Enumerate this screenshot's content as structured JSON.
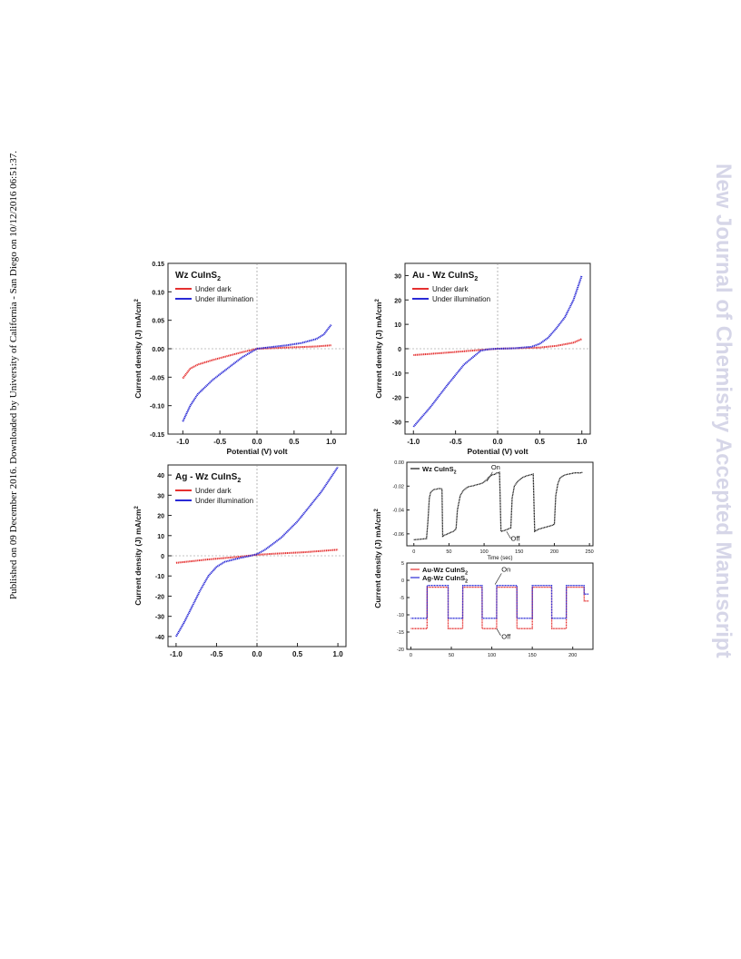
{
  "margin_left": "Published on 09 December 2016. Downloaded by University of California - San Diego on 10/12/2016 06:51:37.",
  "margin_right": "New Journal of Chemistry Accepted Manuscript",
  "colors": {
    "dark": "#e53030",
    "illumination": "#2a2ad6",
    "black": "#111111",
    "au": "#e53030",
    "ag": "#2a2ad6"
  },
  "chart_data": [
    {
      "type": "line",
      "title": "Wz CuInS2",
      "xlabel": "Potential (V) volt",
      "ylabel": "Current density (J) mA/cm2",
      "xlim": [
        -1.2,
        1.2
      ],
      "ylim": [
        -0.15,
        0.15
      ],
      "xticks": [
        "-1.0",
        "-0.5",
        "0.0",
        "0.5",
        "1.0"
      ],
      "yticks": [
        "-0.15",
        "-0.10",
        "-0.05",
        "0.00",
        "0.05",
        "0.10",
        "0.15"
      ],
      "series": [
        {
          "name": "Under dark",
          "x": [
            -1.0,
            -0.9,
            -0.8,
            -0.6,
            -0.4,
            -0.2,
            0.0,
            0.2,
            0.4,
            0.6,
            0.8,
            1.0
          ],
          "y": [
            -0.052,
            -0.035,
            -0.028,
            -0.02,
            -0.013,
            -0.006,
            0.0,
            0.001,
            0.002,
            0.003,
            0.004,
            0.006
          ]
        },
        {
          "name": "Under illumination",
          "x": [
            -1.0,
            -0.9,
            -0.8,
            -0.6,
            -0.4,
            -0.2,
            0.0,
            0.2,
            0.4,
            0.6,
            0.8,
            0.9,
            1.0
          ],
          "y": [
            -0.128,
            -0.1,
            -0.08,
            -0.055,
            -0.035,
            -0.015,
            0.0,
            0.003,
            0.006,
            0.01,
            0.017,
            0.025,
            0.042
          ]
        }
      ]
    },
    {
      "type": "line",
      "title": "Au - Wz CuInS2",
      "xlabel": "Potential (V) volt",
      "ylabel": "Current density (J) mA/cm2",
      "xlim": [
        -1.1,
        1.1
      ],
      "ylim": [
        -35,
        35
      ],
      "xticks": [
        "-1.0",
        "-0.5",
        "0.0",
        "0.5",
        "1.0"
      ],
      "yticks": [
        "-30",
        "-20",
        "-10",
        "0",
        "10",
        "20",
        "30"
      ],
      "series": [
        {
          "name": "Under dark",
          "x": [
            -1.0,
            -0.6,
            -0.2,
            0.0,
            0.2,
            0.5,
            0.7,
            0.9,
            1.0
          ],
          "y": [
            -2.6,
            -1.6,
            -0.5,
            0.0,
            0.2,
            0.5,
            1.2,
            2.5,
            4.0
          ]
        },
        {
          "name": "Under illumination",
          "x": [
            -1.0,
            -0.8,
            -0.6,
            -0.4,
            -0.2,
            -0.1,
            0.0,
            0.2,
            0.4,
            0.5,
            0.6,
            0.7,
            0.8,
            0.9,
            0.95,
            1.0
          ],
          "y": [
            -32,
            -24,
            -15,
            -6.5,
            -0.8,
            -0.2,
            0.0,
            0.2,
            0.8,
            2.0,
            4.5,
            8.5,
            13,
            20,
            25,
            30
          ]
        }
      ]
    },
    {
      "type": "line",
      "title": "Ag - Wz CuInS2",
      "xlabel": "Potential (V) volt",
      "ylabel": "Current density (J) mA/cm2",
      "xlim": [
        -1.1,
        1.1
      ],
      "ylim": [
        -45,
        45
      ],
      "xticks": [
        "-1.0",
        "-0.5",
        "0.0",
        "0.5",
        "1.0"
      ],
      "yticks": [
        "-40",
        "-30",
        "-20",
        "-10",
        "0",
        "10",
        "20",
        "30",
        "40"
      ],
      "series": [
        {
          "name": "Under dark",
          "x": [
            -1.0,
            -0.6,
            -0.2,
            0.0,
            0.2,
            0.6,
            1.0
          ],
          "y": [
            -3.5,
            -1.8,
            -0.4,
            0.5,
            1.0,
            1.8,
            3.0
          ]
        },
        {
          "name": "Under illumination",
          "x": [
            -1.0,
            -0.9,
            -0.8,
            -0.7,
            -0.6,
            -0.5,
            -0.4,
            -0.3,
            -0.2,
            -0.1,
            0.0,
            0.1,
            0.2,
            0.3,
            0.4,
            0.5,
            0.6,
            0.7,
            0.8,
            0.9,
            1.0
          ],
          "y": [
            -40,
            -33,
            -25,
            -17,
            -10,
            -5.5,
            -3,
            -2,
            -1,
            -0.2,
            0.8,
            3,
            6,
            9,
            13,
            17,
            22,
            27,
            32,
            38,
            44
          ]
        }
      ]
    },
    {
      "type": "line",
      "title": "Wz CuInS2",
      "xlabel": "Time (sec)",
      "ylabel": "",
      "xlim": [
        -10,
        255
      ],
      "ylim": [
        -0.07,
        0.0
      ],
      "xticks": [
        "0",
        "50",
        "100",
        "150",
        "200",
        "250"
      ],
      "yticks": [
        "0.00",
        "-0.02",
        "-0.04",
        "-0.06"
      ],
      "annotations": [
        "On",
        "Off"
      ],
      "series": [
        {
          "name": "Wz CuInS2",
          "x": [
            0,
            18,
            20,
            22,
            24,
            28,
            32,
            36,
            40,
            41,
            44,
            48,
            52,
            56,
            60,
            62,
            66,
            70,
            74,
            76,
            78,
            80,
            82,
            84,
            86,
            88,
            90,
            92,
            94,
            96,
            98,
            100,
            102,
            104,
            106,
            108,
            110,
            112,
            116,
            118,
            120,
            122,
            124,
            130,
            134,
            138,
            140,
            143,
            148,
            154,
            160,
            166,
            170,
            172,
            178,
            184,
            190,
            196,
            200,
            202,
            205,
            208,
            212,
            216,
            220,
            224,
            228,
            232,
            236,
            240
          ],
          "y": [
            -0.065,
            -0.064,
            -0.05,
            -0.03,
            -0.025,
            -0.023,
            -0.0225,
            -0.022,
            -0.0223,
            -0.062,
            -0.061,
            -0.06,
            -0.059,
            -0.058,
            -0.056,
            -0.04,
            -0.028,
            -0.024,
            -0.022,
            -0.021,
            -0.0205,
            -0.0202,
            -0.02,
            -0.0198,
            -0.0195,
            -0.019,
            -0.0188,
            -0.0185,
            -0.0182,
            -0.0178,
            -0.0173,
            -0.0165,
            -0.0155,
            -0.0145,
            -0.013,
            -0.012,
            -0.011,
            -0.0105,
            -0.01,
            -0.009,
            -0.0088,
            -0.0085,
            -0.058,
            -0.057,
            -0.056,
            -0.055,
            -0.03,
            -0.02,
            -0.016,
            -0.013,
            -0.0115,
            -0.0105,
            -0.01,
            -0.058,
            -0.056,
            -0.055,
            -0.054,
            -0.053,
            -0.052,
            -0.028,
            -0.018,
            -0.0135,
            -0.0115,
            -0.0105,
            -0.01,
            -0.0095,
            -0.009,
            -0.0088,
            -0.009,
            -0.0085
          ]
        }
      ]
    },
    {
      "type": "line",
      "title": "",
      "xlabel": "",
      "ylabel": "",
      "xlim": [
        -5,
        225
      ],
      "ylim": [
        -20,
        5
      ],
      "xticks": [
        "0",
        "50",
        "100",
        "150",
        "200"
      ],
      "yticks": [
        "5",
        "0",
        "-5",
        "-10",
        "-15",
        "-20"
      ],
      "annotations": [
        "On",
        "Off"
      ],
      "series": [
        {
          "name": "Au-Wz CuInS2",
          "x": [
            0,
            20,
            20.1,
            46,
            46.1,
            64,
            64.1,
            88,
            88.1,
            106,
            106.1,
            131,
            131.1,
            150,
            150.1,
            174,
            174.1,
            192,
            192.1,
            214,
            214.1,
            220
          ],
          "y": [
            -14,
            -14,
            -2,
            -2,
            -14,
            -14,
            -2,
            -2,
            -14,
            -14,
            -2,
            -2,
            -14,
            -14,
            -2,
            -2,
            -14,
            -14,
            -2,
            -2,
            -6,
            -6
          ]
        },
        {
          "name": "Ag-Wz CuInS2",
          "x": [
            0,
            20,
            20.1,
            46,
            46.1,
            64,
            64.1,
            88,
            88.1,
            106,
            106.1,
            131,
            131.1,
            150,
            150.1,
            174,
            174.1,
            192,
            192.1,
            214,
            214.1,
            220
          ],
          "y": [
            -11,
            -11,
            -1.5,
            -1.5,
            -11,
            -11,
            -1.5,
            -1.5,
            -11,
            -11,
            -1.5,
            -1.5,
            -11,
            -11,
            -1.5,
            -1.5,
            -11,
            -11,
            -1.5,
            -1.5,
            -4,
            -4
          ]
        }
      ]
    }
  ],
  "shared_ylabel_4": "Current density (J) mA/cm2"
}
